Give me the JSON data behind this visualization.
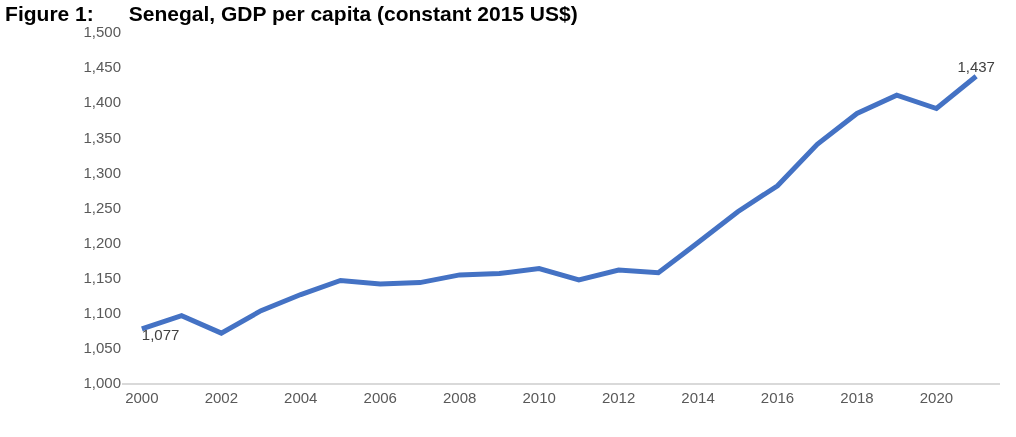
{
  "chart_data": {
    "type": "line",
    "title": "Figure 1:      Senegal, GDP per capita (constant 2015 US$)",
    "x": [
      2000,
      2001,
      2002,
      2003,
      2004,
      2005,
      2006,
      2007,
      2008,
      2009,
      2010,
      2011,
      2012,
      2013,
      2014,
      2015,
      2016,
      2017,
      2018,
      2019,
      2020,
      2021
    ],
    "series": [
      {
        "color": "#4472c4",
        "values": [
          1077,
          1096,
          1071,
          1103,
          1126,
          1146,
          1141,
          1143,
          1154,
          1156,
          1163,
          1147,
          1161,
          1157,
          1200,
          1244,
          1281,
          1340,
          1384,
          1410,
          1391,
          1437
        ],
        "value_labels": [
          "1,077",
          null,
          null,
          null,
          null,
          null,
          null,
          null,
          null,
          null,
          null,
          null,
          null,
          null,
          null,
          null,
          null,
          null,
          null,
          null,
          null,
          "1,437"
        ]
      }
    ],
    "xlim": [
      1999.5,
      2021.6
    ],
    "xticks": [
      2000,
      2002,
      2004,
      2006,
      2008,
      2010,
      2012,
      2014,
      2016,
      2018,
      2020
    ],
    "ylim": [
      1000,
      1500
    ],
    "yticks": [
      {
        "value": 1000,
        "label": "1,000"
      },
      {
        "value": 1050,
        "label": "1,050"
      },
      {
        "value": 1100,
        "label": "1,100"
      },
      {
        "value": 1150,
        "label": "1,150"
      },
      {
        "value": 1200,
        "label": "1,200"
      },
      {
        "value": 1250,
        "label": "1,250"
      },
      {
        "value": 1300,
        "label": "1,300"
      },
      {
        "value": 1350,
        "label": "1,350"
      },
      {
        "value": 1400,
        "label": "1,400"
      },
      {
        "value": 1450,
        "label": "1,450"
      },
      {
        "value": 1500,
        "label": "1,500"
      }
    ],
    "grid": false,
    "legend": false,
    "marker": "none",
    "line_style": "solid"
  }
}
